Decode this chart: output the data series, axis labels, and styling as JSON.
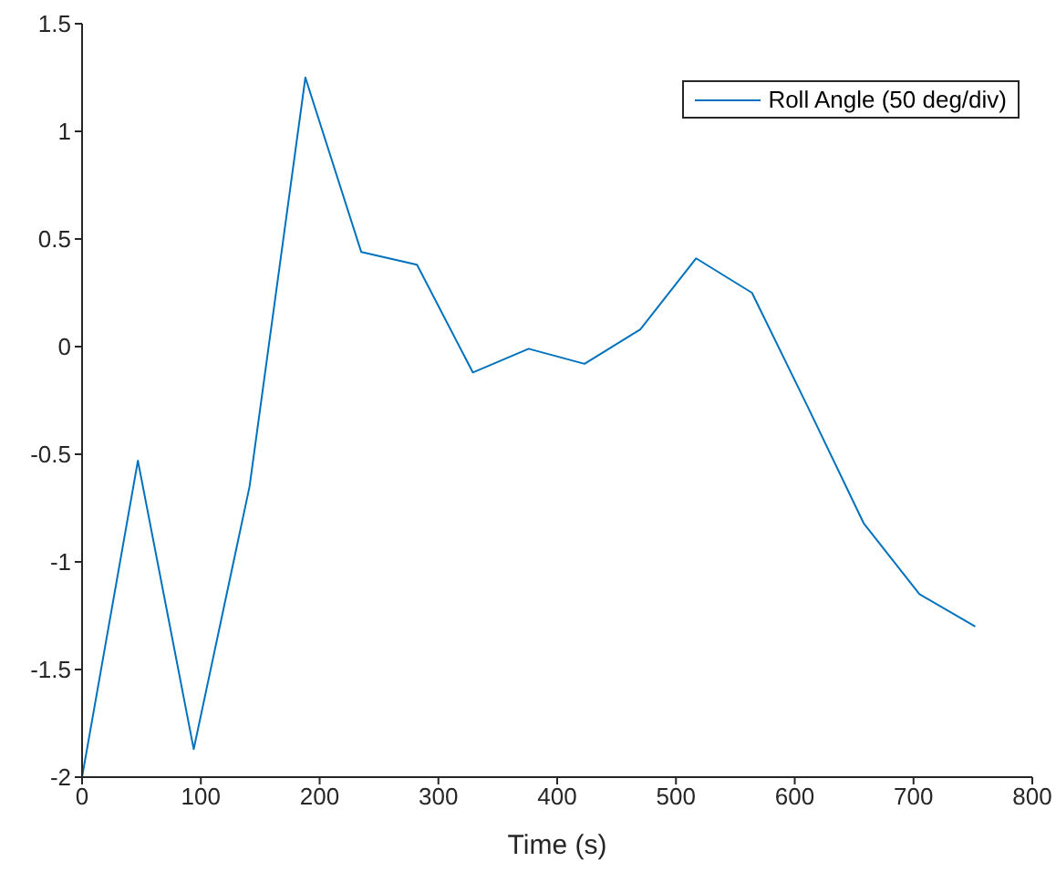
{
  "chart_data": {
    "type": "line",
    "xlabel": "Time (s)",
    "x": [
      0,
      47,
      94,
      141,
      188,
      235,
      282,
      329,
      376,
      423,
      470,
      517,
      564,
      611,
      658,
      705,
      752
    ],
    "series": [
      {
        "name": "Roll Angle (50 deg/div)",
        "color": "#0072bd",
        "values": [
          -2,
          -0.53,
          -1.87,
          -0.65,
          1.25,
          0.44,
          0.38,
          -0.12,
          -0.01,
          -0.08,
          0.08,
          0.41,
          0.25,
          -0.28,
          -0.82,
          -1.15,
          -1.3
        ]
      }
    ],
    "xlim": [
      0,
      800
    ],
    "xticks": [
      0,
      100,
      200,
      300,
      400,
      500,
      600,
      700,
      800
    ],
    "ylim": [
      -2,
      1.5
    ],
    "yticks": [
      -2,
      -1.5,
      -1,
      -0.5,
      0,
      0.5,
      1,
      1.5
    ],
    "grid": false,
    "legend": "top right",
    "marker": "none",
    "line_style": "solid"
  }
}
